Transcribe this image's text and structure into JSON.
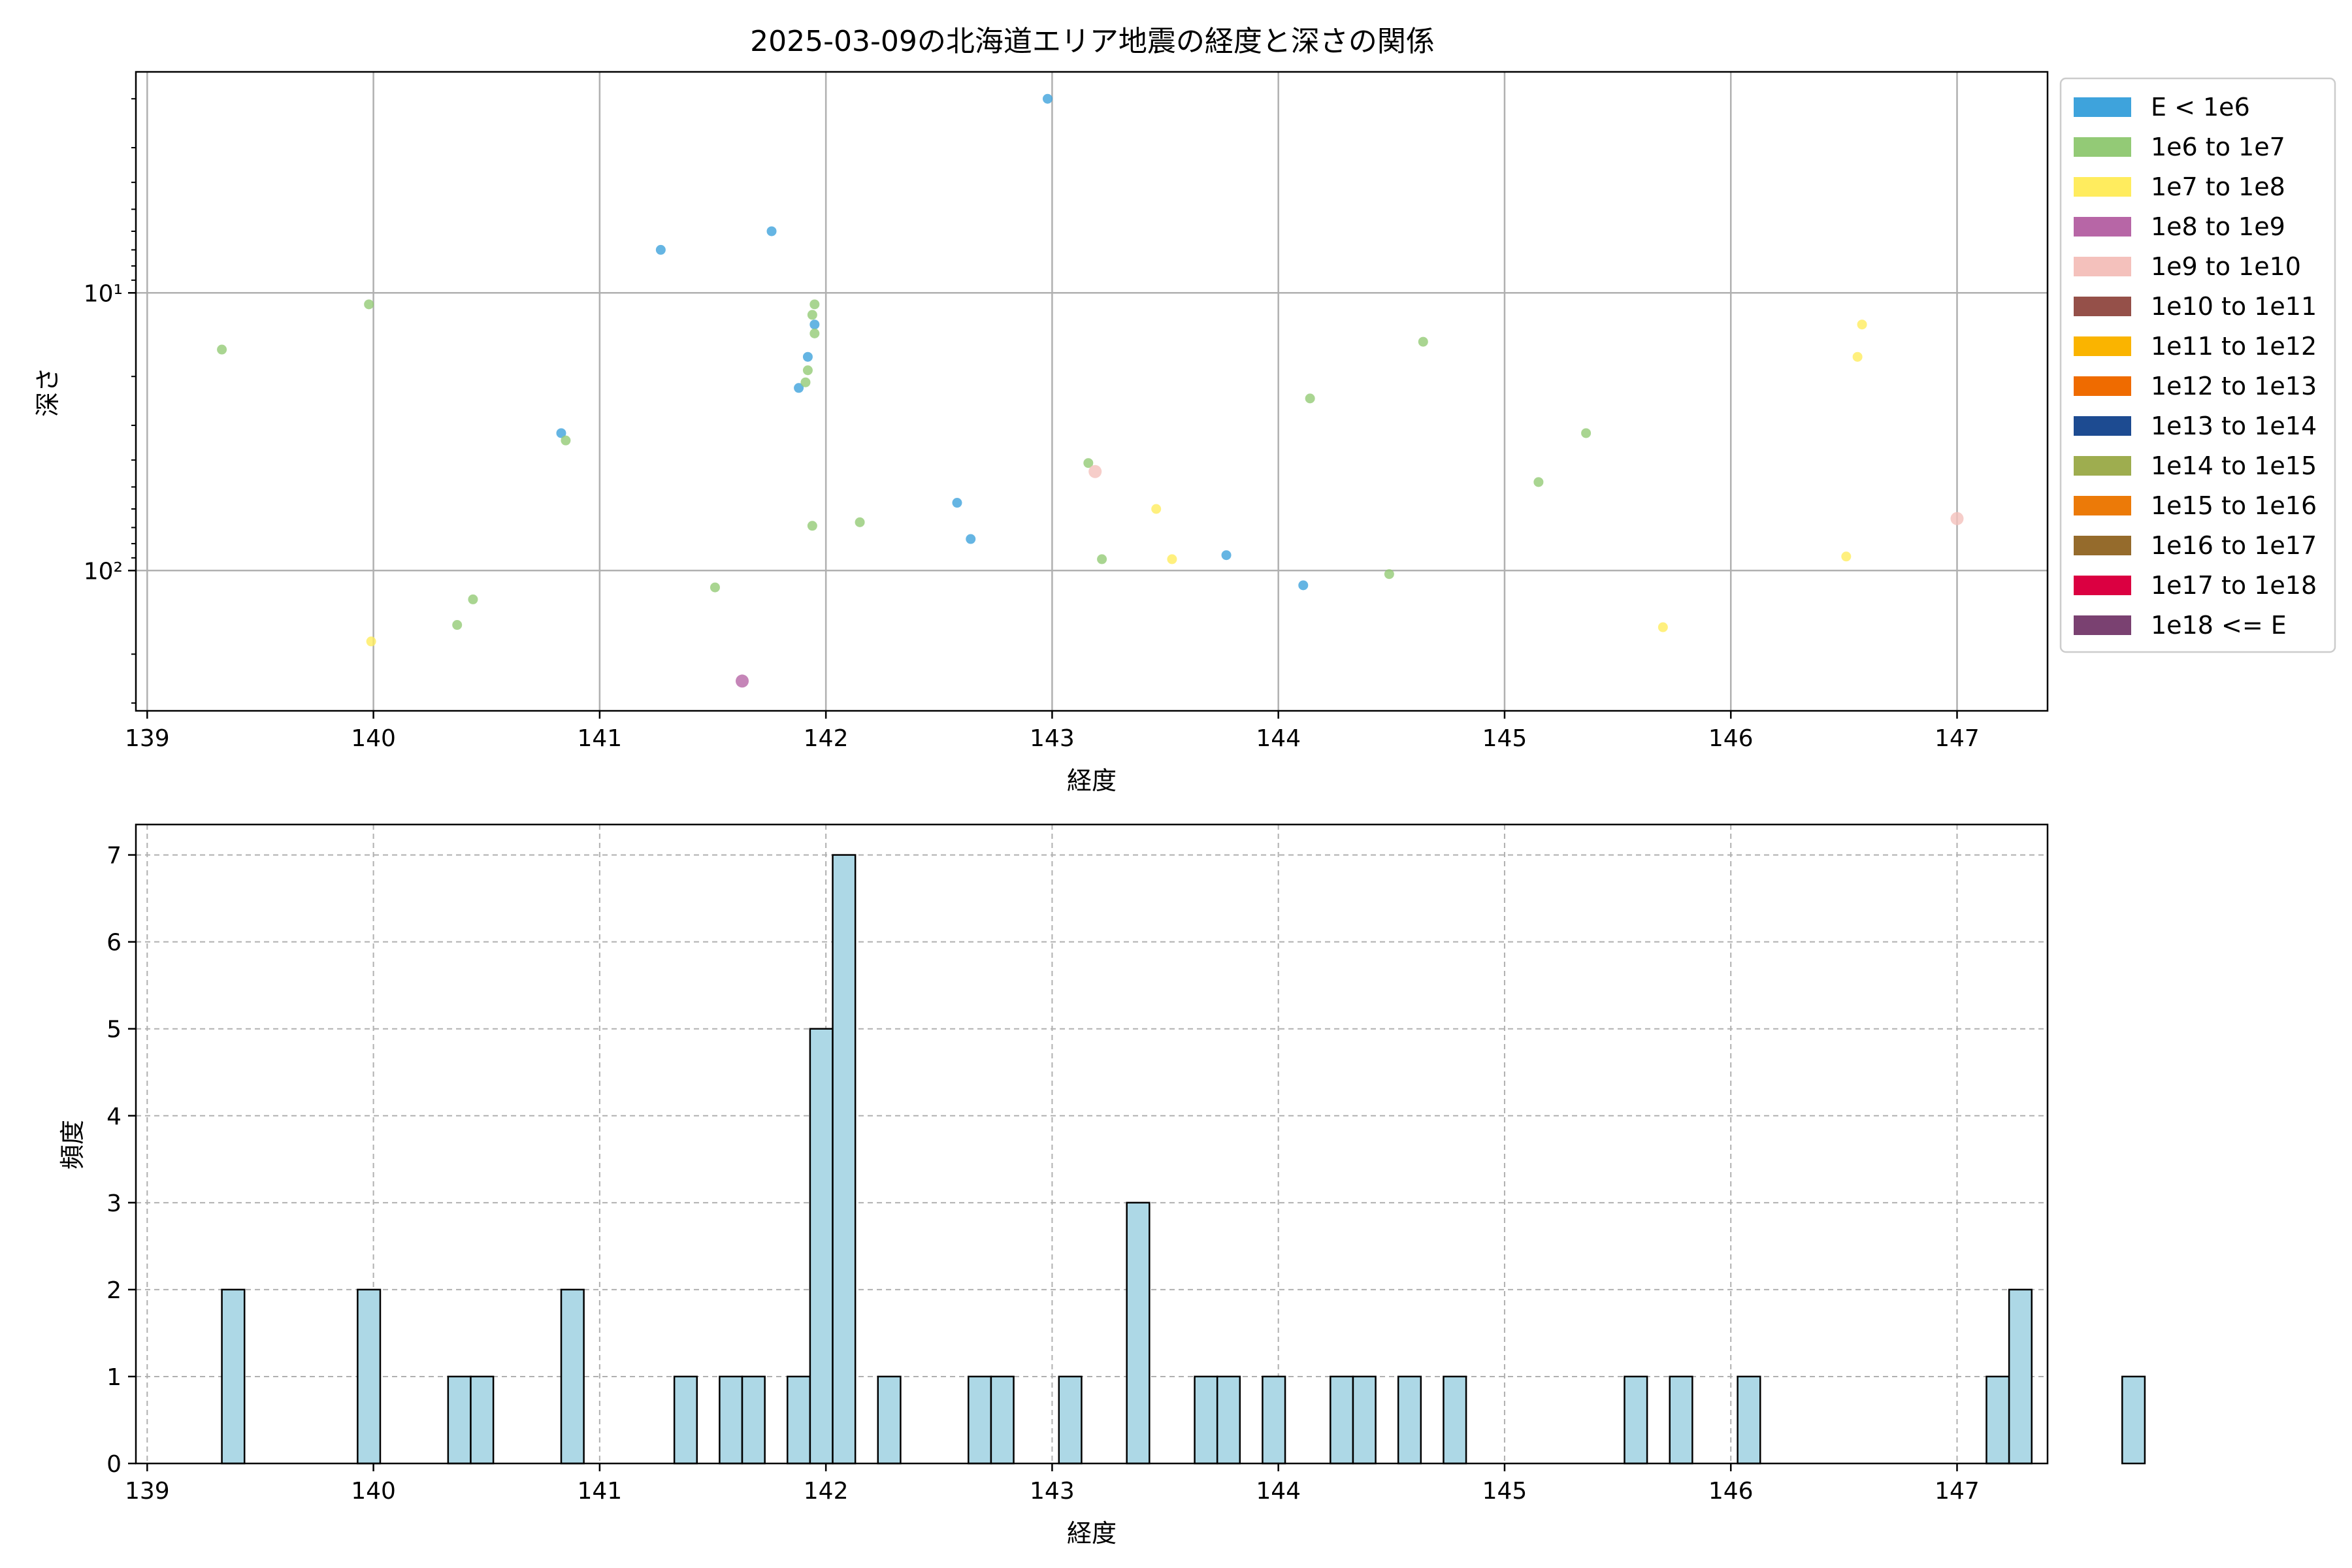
{
  "chart_data": [
    {
      "type": "scatter",
      "title": "2025-03-09の北海道エリア地震の経度と深さの関係",
      "xlabel": "経度",
      "ylabel": "深さ",
      "xlim": [
        138.95,
        147.4
      ],
      "ylim": [
        320,
        1.6
      ],
      "y_scale": "log",
      "y_inverted": true,
      "xticks": [
        139,
        140,
        141,
        142,
        143,
        144,
        145,
        146,
        147
      ],
      "yticks": [
        {
          "value": 10,
          "label": "10¹"
        },
        {
          "value": 100,
          "label": "10²"
        }
      ],
      "grid": true,
      "legend_position": "outside-right-top",
      "legend": [
        {
          "label": "E < 1e6",
          "color": "#3ea3dc"
        },
        {
          "label": "1e6 to 1e7",
          "color": "#93ca76"
        },
        {
          "label": "1e7 to 1e8",
          "color": "#ffec5e"
        },
        {
          "label": "1e8 to 1e9",
          "color": "#b766a6"
        },
        {
          "label": "1e9 to 1e10",
          "color": "#f4c1bc"
        },
        {
          "label": "1e10 to 1e11",
          "color": "#955049"
        },
        {
          "label": "1e11 to 1e12",
          "color": "#fab400"
        },
        {
          "label": "1e12 to 1e13",
          "color": "#ef6b00"
        },
        {
          "label": "1e13 to 1e14",
          "color": "#1d4b91"
        },
        {
          "label": "1e14 to 1e15",
          "color": "#9ead4f"
        },
        {
          "label": "1e15 to 1e16",
          "color": "#ec7a08"
        },
        {
          "label": "1e16 to 1e17",
          "color": "#956b2c"
        },
        {
          "label": "1e17 to 1e18",
          "color": "#db0041"
        },
        {
          "label": "1e18 <= E",
          "color": "#7a4171"
        }
      ],
      "series": [
        {
          "name": "E < 1e6",
          "color": "#3ea3dc",
          "size": "small",
          "points": [
            {
              "x": 142.98,
              "y": 2.0
            },
            {
              "x": 141.76,
              "y": 6.0
            },
            {
              "x": 141.27,
              "y": 7.0
            },
            {
              "x": 141.95,
              "y": 13.0
            },
            {
              "x": 141.92,
              "y": 17.0
            },
            {
              "x": 141.88,
              "y": 22.0
            },
            {
              "x": 140.83,
              "y": 32.0
            },
            {
              "x": 142.58,
              "y": 57.0
            },
            {
              "x": 142.64,
              "y": 77.0
            },
            {
              "x": 143.77,
              "y": 88.0
            },
            {
              "x": 144.11,
              "y": 113.0
            }
          ]
        },
        {
          "name": "1e6 to 1e7",
          "color": "#93ca76",
          "size": "small",
          "points": [
            {
              "x": 139.33,
              "y": 16.0
            },
            {
              "x": 139.98,
              "y": 11.0
            },
            {
              "x": 141.95,
              "y": 11.0
            },
            {
              "x": 141.94,
              "y": 12.0
            },
            {
              "x": 141.95,
              "y": 14.0
            },
            {
              "x": 141.92,
              "y": 19.0
            },
            {
              "x": 141.91,
              "y": 21.0
            },
            {
              "x": 144.64,
              "y": 15.0
            },
            {
              "x": 144.14,
              "y": 24.0
            },
            {
              "x": 140.85,
              "y": 34.0
            },
            {
              "x": 145.36,
              "y": 32.0
            },
            {
              "x": 143.16,
              "y": 41.0
            },
            {
              "x": 145.15,
              "y": 48.0
            },
            {
              "x": 141.94,
              "y": 69.0
            },
            {
              "x": 142.15,
              "y": 67.0
            },
            {
              "x": 143.22,
              "y": 91.0
            },
            {
              "x": 144.49,
              "y": 103.0
            },
            {
              "x": 141.51,
              "y": 115.0
            },
            {
              "x": 140.44,
              "y": 127.0
            },
            {
              "x": 140.37,
              "y": 157.0
            }
          ]
        },
        {
          "name": "1e7 to 1e8",
          "color": "#ffec5e",
          "size": "small",
          "points": [
            {
              "x": 146.58,
              "y": 13.0
            },
            {
              "x": 146.56,
              "y": 17.0
            },
            {
              "x": 143.46,
              "y": 60.0
            },
            {
              "x": 143.53,
              "y": 91.0
            },
            {
              "x": 146.51,
              "y": 89.0
            },
            {
              "x": 145.7,
              "y": 160.0
            },
            {
              "x": 139.99,
              "y": 180.0
            }
          ]
        },
        {
          "name": "1e8 to 1e9",
          "color": "#b766a6",
          "size": "large",
          "points": [
            {
              "x": 141.63,
              "y": 250.0
            }
          ]
        },
        {
          "name": "1e9 to 1e10",
          "color": "#f4c1bc",
          "size": "large",
          "points": [
            {
              "x": 143.19,
              "y": 44.0
            },
            {
              "x": 147.0,
              "y": 65.0
            }
          ]
        }
      ]
    },
    {
      "type": "bar",
      "subtype": "histogram",
      "xlabel": "経度",
      "ylabel": "頻度",
      "xlim": [
        138.95,
        147.4
      ],
      "ylim": [
        0,
        7.35
      ],
      "xticks": [
        139,
        140,
        141,
        142,
        143,
        144,
        145,
        146,
        147
      ],
      "yticks": [
        0,
        1,
        2,
        3,
        4,
        5,
        6,
        7
      ],
      "grid": true,
      "grid_style": "dashed",
      "bar_color": "#add8e6",
      "edge_color": "#000000",
      "bin_start": 139.33,
      "bin_width": 0.1,
      "counts": [
        2,
        0,
        0,
        0,
        0,
        0,
        2,
        0,
        0,
        0,
        1,
        1,
        0,
        0,
        0,
        2,
        0,
        0,
        0,
        0,
        1,
        0,
        1,
        1,
        0,
        1,
        5,
        7,
        0,
        1,
        0,
        0,
        0,
        1,
        1,
        0,
        0,
        1,
        0,
        0,
        3,
        0,
        0,
        1,
        1,
        0,
        1,
        0,
        0,
        1,
        1,
        0,
        1,
        0,
        1,
        0,
        0,
        0,
        0,
        0,
        0,
        0,
        1,
        0,
        1,
        0,
        0,
        1,
        0,
        0,
        0,
        0,
        0,
        0,
        0,
        0,
        0,
        0,
        1,
        2,
        0,
        0,
        0,
        0,
        1
      ]
    }
  ]
}
